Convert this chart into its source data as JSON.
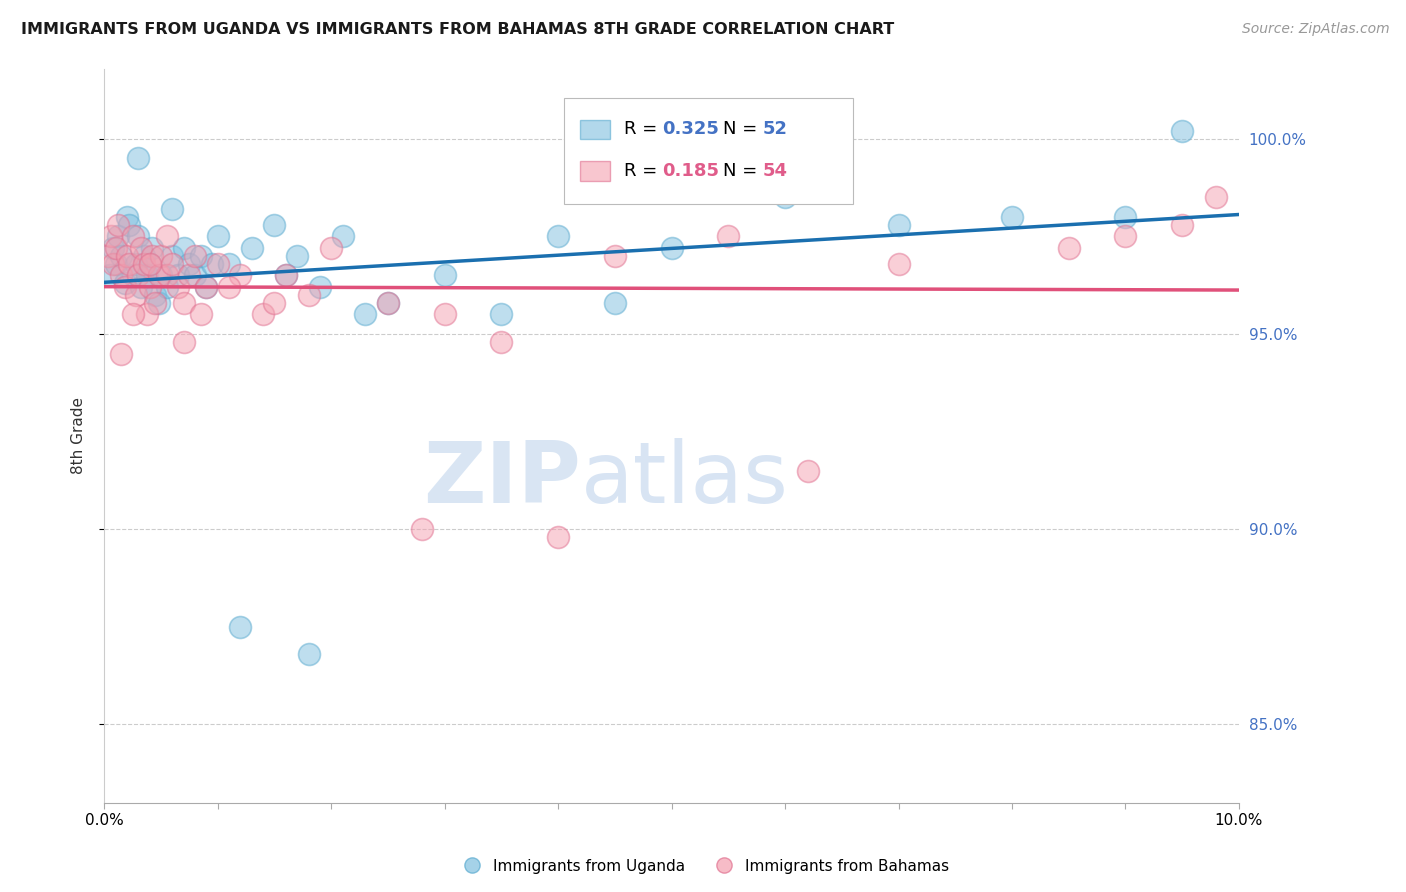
{
  "title": "IMMIGRANTS FROM UGANDA VS IMMIGRANTS FROM BAHAMAS 8TH GRADE CORRELATION CHART",
  "source": "Source: ZipAtlas.com",
  "ylabel": "8th Grade",
  "xlim": [
    0.0,
    10.0
  ],
  "ylim": [
    83.0,
    101.8
  ],
  "yticks": [
    85.0,
    90.0,
    95.0,
    100.0
  ],
  "ytick_labels": [
    "85.0%",
    "90.0%",
    "95.0%",
    "100.0%"
  ],
  "xticks": [
    0.0,
    1.0,
    2.0,
    3.0,
    4.0,
    5.0,
    6.0,
    7.0,
    8.0,
    9.0,
    10.0
  ],
  "uganda_color": "#7fbfdf",
  "uganda_edge_color": "#5aaacf",
  "bahamas_color": "#f4a0b0",
  "bahamas_edge_color": "#e07090",
  "uganda_line_color": "#1a6faf",
  "bahamas_line_color": "#e0507a",
  "legend_blue": "#4472c4",
  "legend_pink": "#e05c8a",
  "uganda_R": 0.325,
  "uganda_N": 52,
  "bahamas_R": 0.185,
  "bahamas_N": 54,
  "watermark_zip": "ZIP",
  "watermark_atlas": "atlas",
  "background_color": "#ffffff",
  "grid_color": "#cccccc",
  "uganda_scatter_x": [
    0.05,
    0.08,
    0.1,
    0.12,
    0.15,
    0.18,
    0.2,
    0.22,
    0.25,
    0.28,
    0.3,
    0.32,
    0.35,
    0.38,
    0.4,
    0.42,
    0.45,
    0.48,
    0.5,
    0.55,
    0.6,
    0.65,
    0.7,
    0.75,
    0.8,
    0.85,
    0.9,
    0.95,
    1.0,
    1.1,
    1.3,
    1.5,
    1.6,
    1.7,
    1.9,
    2.1,
    2.3,
    2.5,
    3.0,
    3.5,
    4.0,
    4.5,
    5.0,
    6.0,
    7.0,
    8.0,
    9.0,
    9.5,
    1.2,
    1.8,
    0.6,
    0.3
  ],
  "uganda_scatter_y": [
    96.5,
    97.2,
    96.8,
    97.5,
    97.0,
    96.3,
    98.0,
    97.8,
    96.5,
    96.8,
    97.5,
    96.2,
    97.0,
    96.5,
    96.8,
    97.2,
    96.0,
    95.8,
    96.5,
    96.2,
    97.0,
    96.5,
    97.2,
    96.8,
    96.5,
    97.0,
    96.2,
    96.8,
    97.5,
    96.8,
    97.2,
    97.8,
    96.5,
    97.0,
    96.2,
    97.5,
    95.5,
    95.8,
    96.5,
    95.5,
    97.5,
    95.8,
    97.2,
    98.5,
    97.8,
    98.0,
    98.0,
    100.2,
    87.5,
    86.8,
    98.2,
    99.5
  ],
  "bahamas_scatter_x": [
    0.03,
    0.06,
    0.08,
    0.1,
    0.12,
    0.15,
    0.18,
    0.2,
    0.22,
    0.25,
    0.28,
    0.3,
    0.32,
    0.35,
    0.38,
    0.4,
    0.42,
    0.45,
    0.48,
    0.5,
    0.55,
    0.6,
    0.65,
    0.7,
    0.75,
    0.8,
    0.85,
    0.9,
    1.0,
    1.2,
    1.4,
    1.6,
    1.8,
    2.0,
    2.5,
    3.0,
    3.5,
    4.5,
    5.5,
    6.2,
    9.8,
    0.25,
    0.4,
    0.55,
    0.7,
    1.1,
    1.5,
    2.8,
    4.0,
    7.0,
    8.5,
    9.0,
    9.5,
    0.15
  ],
  "bahamas_scatter_y": [
    97.0,
    97.5,
    96.8,
    97.2,
    97.8,
    96.5,
    96.2,
    97.0,
    96.8,
    97.5,
    96.0,
    96.5,
    97.2,
    96.8,
    95.5,
    96.2,
    97.0,
    95.8,
    96.5,
    97.0,
    96.5,
    96.8,
    96.2,
    95.8,
    96.5,
    97.0,
    95.5,
    96.2,
    96.8,
    96.5,
    95.5,
    96.5,
    96.0,
    97.2,
    95.8,
    95.5,
    94.8,
    97.0,
    97.5,
    91.5,
    98.5,
    95.5,
    96.8,
    97.5,
    94.8,
    96.2,
    95.8,
    90.0,
    89.8,
    96.8,
    97.2,
    97.5,
    97.8,
    94.5
  ]
}
